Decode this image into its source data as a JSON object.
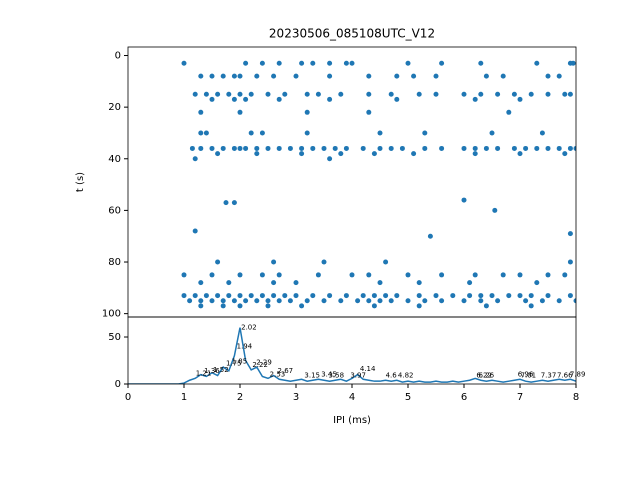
{
  "chart_data": [
    {
      "type": "scatter",
      "title": "20230506_085108UTC_V12",
      "ylabel": "t (s)",
      "color": "#1f77b4",
      "xlim": [
        0,
        8
      ],
      "ylim": [
        101.3,
        -3.3
      ],
      "yticks": [
        0,
        20,
        40,
        60,
        80,
        100
      ],
      "x": [
        1.0,
        2.1,
        2.4,
        2.7,
        3.1,
        3.3,
        3.6,
        3.9,
        4.0,
        5.0,
        5.6,
        6.3,
        7.3,
        7.9,
        7.95,
        1.3,
        1.5,
        1.7,
        1.9,
        2.0,
        2.3,
        2.6,
        3.0,
        3.6,
        4.3,
        4.8,
        5.1,
        5.5,
        6.4,
        6.7,
        7.5,
        7.7,
        1.2,
        1.4,
        1.6,
        1.8,
        2.0,
        2.2,
        2.5,
        2.8,
        3.2,
        3.4,
        3.8,
        4.3,
        4.7,
        5.2,
        5.5,
        6.0,
        6.3,
        6.6,
        6.9,
        7.2,
        7.5,
        7.8,
        7.9,
        1.5,
        1.9,
        2.1,
        2.7,
        3.6,
        4.8,
        6.2,
        7.0,
        1.3,
        2.0,
        3.2,
        4.3,
        6.8,
        1.3,
        1.4,
        2.2,
        2.4,
        3.2,
        4.5,
        5.3,
        6.5,
        7.4,
        1.15,
        1.3,
        1.5,
        1.7,
        1.9,
        2.0,
        2.1,
        2.3,
        2.5,
        2.7,
        2.9,
        3.1,
        3.3,
        3.5,
        3.7,
        3.9,
        4.2,
        4.5,
        4.7,
        4.9,
        5.3,
        5.6,
        6.0,
        6.2,
        6.4,
        6.6,
        6.9,
        7.1,
        7.3,
        7.5,
        7.7,
        7.9,
        8.0,
        1.6,
        2.3,
        3.1,
        3.8,
        4.4,
        5.1,
        6.2,
        7.0,
        7.8,
        1.2,
        3.6,
        1.75,
        1.9,
        6.0,
        6.55,
        1.2,
        5.4,
        7.9,
        1.6,
        2.6,
        3.5,
        4.6,
        7.9,
        1.0,
        1.5,
        2.0,
        2.4,
        2.7,
        3.4,
        4.0,
        4.3,
        5.0,
        5.6,
        6.2,
        6.7,
        7.0,
        7.5,
        7.8,
        1.3,
        1.8,
        2.6,
        3.0,
        4.5,
        5.2,
        6.1,
        7.3,
        1.0,
        1.2,
        1.4,
        1.6,
        1.8,
        2.0,
        2.2,
        2.4,
        2.6,
        2.8,
        3.0,
        3.3,
        3.6,
        3.9,
        4.2,
        4.4,
        4.6,
        4.8,
        5.2,
        5.5,
        5.8,
        6.1,
        6.3,
        6.5,
        6.8,
        7.0,
        7.2,
        7.5,
        7.9,
        1.1,
        1.3,
        1.5,
        1.7,
        1.9,
        2.1,
        2.3,
        2.5,
        2.7,
        2.9,
        3.2,
        3.5,
        3.8,
        4.1,
        4.3,
        4.5,
        4.7,
        5.0,
        5.3,
        5.6,
        6.0,
        6.3,
        6.6,
        7.1,
        7.4,
        7.7,
        8.0,
        1.3,
        1.7,
        2.0,
        2.5,
        3.1,
        4.4,
        5.2,
        6.4,
        7.2
      ],
      "y": [
        3,
        3,
        3,
        3,
        3,
        3,
        3,
        3,
        3,
        3,
        3,
        3,
        3,
        3,
        3,
        8,
        8,
        8,
        8,
        8,
        8,
        8,
        8,
        8,
        8,
        8,
        8,
        8,
        8,
        8,
        8,
        8,
        15,
        15,
        15,
        15,
        15,
        15,
        15,
        15,
        15,
        15,
        15,
        15,
        15,
        15,
        15,
        15,
        15,
        15,
        15,
        15,
        15,
        15,
        15,
        17,
        17,
        17,
        17,
        17,
        17,
        17,
        17,
        22,
        22,
        22,
        22,
        22,
        30,
        30,
        30,
        30,
        30,
        30,
        30,
        30,
        30,
        36,
        36,
        36,
        36,
        36,
        36,
        36,
        36,
        36,
        36,
        36,
        36,
        36,
        36,
        36,
        36,
        36,
        36,
        36,
        36,
        36,
        36,
        36,
        36,
        36,
        36,
        36,
        36,
        36,
        36,
        36,
        36,
        36,
        38,
        38,
        38,
        38,
        38,
        38,
        38,
        38,
        38,
        40,
        40,
        57,
        57,
        56,
        60,
        68,
        70,
        69,
        80,
        80,
        80,
        80,
        80,
        85,
        85,
        85,
        85,
        85,
        85,
        85,
        85,
        85,
        85,
        85,
        85,
        85,
        85,
        85,
        88,
        88,
        88,
        88,
        88,
        88,
        88,
        88,
        93,
        93,
        93,
        93,
        93,
        93,
        93,
        93,
        93,
        93,
        93,
        93,
        93,
        93,
        93,
        93,
        93,
        93,
        93,
        93,
        93,
        93,
        93,
        93,
        93,
        93,
        93,
        93,
        93,
        95,
        95,
        95,
        95,
        95,
        95,
        95,
        95,
        95,
        95,
        95,
        95,
        95,
        95,
        95,
        95,
        95,
        95,
        95,
        95,
        95,
        95,
        95,
        95,
        95,
        95,
        95,
        97,
        97,
        97,
        97,
        97,
        97,
        97,
        97,
        97
      ]
    },
    {
      "type": "line",
      "xlabel": "IPI (ms)",
      "color": "#1f77b4",
      "xlim": [
        0,
        8
      ],
      "xticks": [
        0,
        1,
        2,
        3,
        4,
        5,
        6,
        7,
        8
      ],
      "ylim": [
        0,
        71.3
      ],
      "yticks": [
        0,
        50
      ],
      "x": [
        0,
        0.1,
        0.2,
        0.3,
        0.4,
        0.5,
        0.6,
        0.7,
        0.8,
        0.9,
        1.0,
        1.1,
        1.2,
        1.3,
        1.4,
        1.5,
        1.6,
        1.7,
        1.8,
        1.9,
        2.0,
        2.1,
        2.2,
        2.3,
        2.4,
        2.5,
        2.6,
        2.7,
        2.8,
        2.9,
        3.0,
        3.1,
        3.2,
        3.3,
        3.4,
        3.5,
        3.6,
        3.7,
        3.8,
        3.9,
        4.0,
        4.1,
        4.2,
        4.3,
        4.4,
        4.5,
        4.6,
        4.7,
        4.8,
        4.9,
        5.0,
        5.1,
        5.2,
        5.3,
        5.4,
        5.5,
        5.6,
        5.7,
        5.8,
        5.9,
        6.0,
        6.1,
        6.2,
        6.3,
        6.4,
        6.5,
        6.6,
        6.7,
        6.8,
        6.9,
        7.0,
        7.1,
        7.2,
        7.3,
        7.4,
        7.5,
        7.6,
        7.7,
        7.8,
        7.9,
        8.0
      ],
      "values": [
        0,
        0,
        0,
        0,
        0,
        0,
        0,
        0,
        0,
        0,
        1,
        4,
        6,
        10,
        8,
        12,
        9,
        18,
        14,
        30,
        60,
        25,
        15,
        18,
        8,
        6,
        9,
        5,
        4,
        3,
        4,
        5,
        3,
        4,
        5,
        4,
        3,
        4,
        5,
        3,
        6,
        10,
        5,
        4,
        3,
        3,
        4,
        3,
        4,
        2,
        3,
        2,
        3,
        2,
        2,
        3,
        2,
        2,
        3,
        2,
        3,
        4,
        6,
        4,
        3,
        4,
        3,
        2,
        3,
        4,
        5,
        3,
        2,
        3,
        4,
        3,
        4,
        5,
        4,
        5,
        3
      ],
      "annotations": [
        {
          "text": "2.02",
          "x": 2.02,
          "y": 60
        },
        {
          "text": "1.94",
          "x": 1.94,
          "y": 40
        },
        {
          "text": "1.75",
          "x": 1.75,
          "y": 22
        },
        {
          "text": "1.85",
          "x": 1.85,
          "y": 24
        },
        {
          "text": "1.52",
          "x": 1.52,
          "y": 15
        },
        {
          "text": "1.36",
          "x": 1.36,
          "y": 14
        },
        {
          "text": "1.21",
          "x": 1.21,
          "y": 11
        },
        {
          "text": "2.29",
          "x": 2.29,
          "y": 23
        },
        {
          "text": "2.22",
          "x": 2.22,
          "y": 20
        },
        {
          "text": "2.67",
          "x": 2.67,
          "y": 14
        },
        {
          "text": "2.53",
          "x": 2.53,
          "y": 10
        },
        {
          "text": "3.15",
          "x": 3.15,
          "y": 9
        },
        {
          "text": "3.45",
          "x": 3.45,
          "y": 10
        },
        {
          "text": "3.58",
          "x": 3.58,
          "y": 9
        },
        {
          "text": "3.97",
          "x": 3.97,
          "y": 9
        },
        {
          "text": "4.14",
          "x": 4.14,
          "y": 16
        },
        {
          "text": "4.6",
          "x": 4.6,
          "y": 9
        },
        {
          "text": "4.82",
          "x": 4.82,
          "y": 9
        },
        {
          "text": "6.22",
          "x": 6.22,
          "y": 9
        },
        {
          "text": "6.26",
          "x": 6.26,
          "y": 9
        },
        {
          "text": "6.96",
          "x": 6.96,
          "y": 10
        },
        {
          "text": "7.01",
          "x": 7.01,
          "y": 9
        },
        {
          "text": "7.37",
          "x": 7.37,
          "y": 9
        },
        {
          "text": "7.66",
          "x": 7.66,
          "y": 9
        },
        {
          "text": "7.89",
          "x": 7.89,
          "y": 10
        }
      ]
    }
  ]
}
